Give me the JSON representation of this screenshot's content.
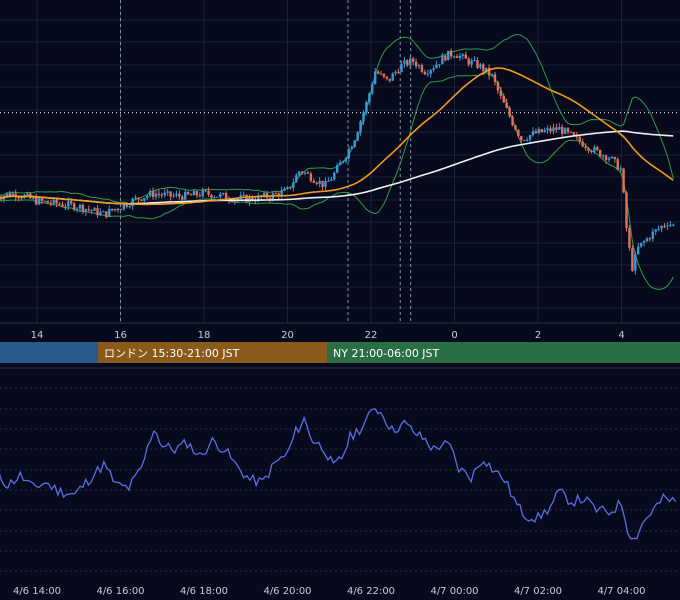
{
  "chart_data": [
    {
      "type": "candlestick",
      "title": "",
      "x_ticks": [
        "14",
        "16",
        "18",
        "20",
        "22",
        "0",
        "2",
        "4"
      ],
      "y_range_relative": [
        0,
        100
      ],
      "overlays": [
        {
          "name": "",
          "kind": "moving-average-long",
          "color": "#f0f0f0"
        },
        {
          "name": "",
          "kind": "moving-average-short",
          "color": "#f39a1e"
        },
        {
          "name": "",
          "kind": "bollinger-bands",
          "color": "#2e9c4c"
        }
      ],
      "horizontal_line": {
        "style": "dotted",
        "color": "#ffffff",
        "y": 72
      },
      "vertical_markers": [
        21.45,
        22.7,
        22.95
      ],
      "candle_colors": {
        "up": "#3a9ad9",
        "down": "#e0735a"
      },
      "price_path": [
        [
          13.1,
          40
        ],
        [
          13.5,
          41
        ],
        [
          14.0,
          38
        ],
        [
          14.5,
          37
        ],
        [
          15.0,
          36
        ],
        [
          15.6,
          33
        ],
        [
          16.0,
          36
        ],
        [
          16.4,
          39
        ],
        [
          16.8,
          41
        ],
        [
          17.2,
          40
        ],
        [
          17.6,
          40
        ],
        [
          18.0,
          41
        ],
        [
          18.4,
          40
        ],
        [
          18.8,
          39
        ],
        [
          19.2,
          39
        ],
        [
          19.6,
          40
        ],
        [
          20.0,
          42
        ],
        [
          20.3,
          50
        ],
        [
          20.6,
          47
        ],
        [
          20.9,
          44
        ],
        [
          21.1,
          48
        ],
        [
          21.4,
          56
        ],
        [
          21.6,
          62
        ],
        [
          21.9,
          76
        ],
        [
          22.1,
          88
        ],
        [
          22.4,
          84
        ],
        [
          22.7,
          90
        ],
        [
          23.0,
          92
        ],
        [
          23.3,
          88
        ],
        [
          23.5,
          90
        ],
        [
          23.8,
          94
        ],
        [
          24.0,
          95
        ],
        [
          24.3,
          92
        ],
        [
          24.6,
          90
        ],
        [
          24.9,
          86
        ],
        [
          25.1,
          78
        ],
        [
          25.4,
          68
        ],
        [
          25.6,
          62
        ],
        [
          25.9,
          64
        ],
        [
          26.2,
          65
        ],
        [
          26.5,
          66
        ],
        [
          26.8,
          63
        ],
        [
          27.1,
          60
        ],
        [
          27.4,
          57
        ],
        [
          27.7,
          55
        ],
        [
          28.0,
          50
        ],
        [
          28.1,
          30
        ],
        [
          28.25,
          12
        ],
        [
          28.4,
          20
        ],
        [
          28.7,
          25
        ],
        [
          29.1,
          30
        ],
        [
          29.3,
          28
        ]
      ]
    },
    {
      "type": "line",
      "title": "",
      "x_ticks": [
        "4/6 14:00",
        "4/6 16:00",
        "4/6 18:00",
        "4/6 20:00",
        "4/6 22:00",
        "4/7 00:00",
        "4/7 02:00",
        "4/7 04:00"
      ],
      "line_color": "#5b6ee6",
      "y_range_relative": [
        0,
        100
      ],
      "gridlines": 8,
      "values": [
        [
          13.0,
          50
        ],
        [
          13.3,
          40
        ],
        [
          13.6,
          47
        ],
        [
          13.9,
          38
        ],
        [
          14.2,
          42
        ],
        [
          14.5,
          36
        ],
        [
          14.9,
          33
        ],
        [
          15.3,
          46
        ],
        [
          15.6,
          55
        ],
        [
          15.9,
          40
        ],
        [
          16.2,
          38
        ],
        [
          16.5,
          52
        ],
        [
          16.8,
          82
        ],
        [
          17.0,
          69
        ],
        [
          17.3,
          66
        ],
        [
          17.6,
          71
        ],
        [
          17.9,
          61
        ],
        [
          18.2,
          72
        ],
        [
          18.5,
          66
        ],
        [
          18.8,
          53
        ],
        [
          19.1,
          44
        ],
        [
          19.4,
          42
        ],
        [
          19.7,
          56
        ],
        [
          20.0,
          63
        ],
        [
          20.2,
          79
        ],
        [
          20.4,
          88
        ],
        [
          20.6,
          73
        ],
        [
          20.9,
          66
        ],
        [
          21.1,
          53
        ],
        [
          21.3,
          60
        ],
        [
          21.5,
          75
        ],
        [
          21.8,
          83
        ],
        [
          22.1,
          97
        ],
        [
          22.3,
          91
        ],
        [
          22.5,
          80
        ],
        [
          22.8,
          85
        ],
        [
          23.1,
          77
        ],
        [
          23.3,
          73
        ],
        [
          23.5,
          66
        ],
        [
          23.7,
          70
        ],
        [
          23.9,
          68
        ],
        [
          24.1,
          52
        ],
        [
          24.4,
          46
        ],
        [
          24.7,
          60
        ],
        [
          24.9,
          52
        ],
        [
          25.2,
          44
        ],
        [
          25.5,
          25
        ],
        [
          25.7,
          18
        ],
        [
          26.0,
          16
        ],
        [
          26.3,
          24
        ],
        [
          26.5,
          35
        ],
        [
          26.8,
          28
        ],
        [
          27.1,
          30
        ],
        [
          27.4,
          22
        ],
        [
          27.7,
          20
        ],
        [
          28.0,
          27
        ],
        [
          28.15,
          8
        ],
        [
          28.3,
          0
        ],
        [
          28.5,
          12
        ],
        [
          28.7,
          20
        ],
        [
          29.0,
          30
        ],
        [
          29.3,
          28
        ]
      ]
    }
  ],
  "sessions": [
    {
      "label": "",
      "color": "#2a5a8c"
    },
    {
      "label": "ロンドン 15:30-21:00 JST",
      "color": "#8a5a1a"
    },
    {
      "label": "NY 21:00-06:00 JST",
      "color": "#2a6e46"
    }
  ]
}
